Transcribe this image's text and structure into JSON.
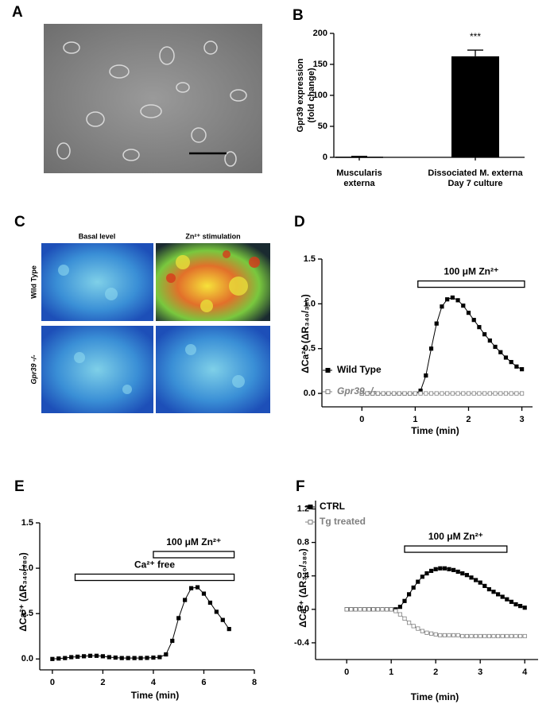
{
  "figure": {
    "panel_labels": [
      "A",
      "B",
      "C",
      "D",
      "E",
      "F"
    ],
    "panel_c": {
      "columns": [
        "Basal level",
        "Zn²⁺ stimulation"
      ],
      "rows": [
        "Wild Type",
        "Gpr39 -/-"
      ]
    }
  },
  "chart_data": [
    {
      "type": "bar",
      "categories": [
        [
          "Muscularis",
          "externa"
        ],
        [
          "Dissociated M. externa",
          "Day 7 culture"
        ]
      ],
      "values": [
        1,
        163
      ],
      "errors": [
        0.5,
        10
      ],
      "significance": [
        null,
        "***"
      ],
      "color": "#000000",
      "ylabel": [
        "Gpr39 expression",
        "(fold change)"
      ],
      "ylim": [
        0,
        200
      ],
      "yticks": [
        0,
        50,
        100,
        150,
        200
      ]
    },
    {
      "type": "line",
      "xlabel": "Time (min)",
      "ylabel": "ΔCa²⁺ (ΔR₃₄₀/₃₈₀)",
      "x": [
        0,
        0.1,
        0.2,
        0.3,
        0.4,
        0.5,
        0.6,
        0.7,
        0.8,
        0.9,
        1.0,
        1.1,
        1.2,
        1.3,
        1.4,
        1.5,
        1.6,
        1.7,
        1.8,
        1.9,
        2.0,
        2.1,
        2.2,
        2.3,
        2.4,
        2.5,
        2.6,
        2.7,
        2.8,
        2.9,
        3.0
      ],
      "series": [
        {
          "name": "Wild Type",
          "color": "#000000",
          "marker": "filled",
          "values": [
            0,
            0,
            0,
            0,
            0,
            0,
            0,
            0,
            0,
            0,
            0,
            0.03,
            0.2,
            0.5,
            0.78,
            0.97,
            1.05,
            1.07,
            1.04,
            0.98,
            0.9,
            0.82,
            0.74,
            0.66,
            0.59,
            0.52,
            0.46,
            0.4,
            0.35,
            0.3,
            0.27
          ]
        },
        {
          "name": "Gpr39 -/-",
          "color": "#808080",
          "marker": "open",
          "values": [
            0,
            0,
            0,
            0,
            0,
            0,
            0,
            0,
            0,
            0,
            0,
            0,
            0,
            0,
            0,
            0,
            0,
            0,
            0,
            0,
            0,
            0,
            0,
            0,
            0,
            0,
            0,
            0,
            0,
            0,
            0
          ]
        }
      ],
      "annotations": [
        {
          "text": "100 μM Zn²⁺",
          "x": [
            1.05,
            3.05
          ],
          "y": 1.22
        }
      ],
      "legend": "left",
      "xlim": [
        -0.75,
        3.2
      ],
      "xticks": [
        0,
        1,
        2,
        3
      ],
      "ylim": [
        -0.15,
        1.5
      ],
      "yticks": [
        {
          "value": 0,
          "label": "0.0"
        },
        0.5,
        {
          "value": 1,
          "label": "1.0"
        },
        1.5
      ]
    },
    {
      "type": "line",
      "xlabel": "Time (min)",
      "ylabel": "ΔCa²⁺ (ΔR₃₄₀/₃₈₀)",
      "x": [
        0,
        0.25,
        0.5,
        0.75,
        1,
        1.25,
        1.5,
        1.75,
        2,
        2.25,
        2.5,
        2.75,
        3,
        3.25,
        3.5,
        3.75,
        4,
        4.25,
        4.5,
        4.75,
        5,
        5.25,
        5.5,
        5.75,
        6,
        6.25,
        6.5,
        6.75,
        7
      ],
      "series": [
        {
          "color": "#000000",
          "marker": "filled",
          "values": [
            0,
            0.005,
            0.01,
            0.02,
            0.025,
            0.03,
            0.035,
            0.035,
            0.03,
            0.02,
            0.015,
            0.01,
            0.01,
            0.01,
            0.01,
            0.012,
            0.015,
            0.02,
            0.05,
            0.2,
            0.45,
            0.65,
            0.78,
            0.79,
            0.72,
            0.62,
            0.52,
            0.43,
            0.33
          ]
        }
      ],
      "annotations": [
        {
          "text": "100 μM Zn²⁺",
          "x": [
            4,
            7.2
          ],
          "y": 1.15
        },
        {
          "text": "Ca²⁺ free",
          "x": [
            0.9,
            7.2
          ],
          "y": 0.9
        }
      ],
      "xlim": [
        -0.5,
        8
      ],
      "xticks": [
        0,
        2,
        4,
        6,
        8
      ],
      "ylim": [
        -0.12,
        1.5
      ],
      "yticks": [
        {
          "value": 0,
          "label": "0.0"
        },
        0.5,
        {
          "value": 1,
          "label": "1.0"
        },
        1.5
      ]
    },
    {
      "type": "line",
      "xlabel": "Time (min)",
      "ylabel": "ΔCa²⁺ (ΔR₃₄₀/₃₈₀)",
      "x": [
        0,
        0.1,
        0.2,
        0.3,
        0.4,
        0.5,
        0.6,
        0.7,
        0.8,
        0.9,
        1.0,
        1.1,
        1.2,
        1.3,
        1.4,
        1.5,
        1.6,
        1.7,
        1.8,
        1.9,
        2.0,
        2.1,
        2.2,
        2.3,
        2.4,
        2.5,
        2.6,
        2.7,
        2.8,
        2.9,
        3.0,
        3.1,
        3.2,
        3.3,
        3.4,
        3.5,
        3.6,
        3.7,
        3.8,
        3.9,
        4.0
      ],
      "series": [
        {
          "name": "CTRL",
          "color": "#000000",
          "marker": "filled",
          "values": [
            0,
            0,
            0,
            0,
            0,
            0,
            0,
            0,
            0,
            0,
            0,
            0,
            0.03,
            0.1,
            0.18,
            0.26,
            0.33,
            0.39,
            0.43,
            0.46,
            0.48,
            0.49,
            0.49,
            0.48,
            0.47,
            0.45,
            0.43,
            0.41,
            0.38,
            0.35,
            0.32,
            0.28,
            0.24,
            0.21,
            0.18,
            0.15,
            0.12,
            0.09,
            0.06,
            0.04,
            0.02
          ]
        },
        {
          "name": "Tg treated",
          "color": "#808080",
          "marker": "open",
          "values": [
            0,
            0,
            0,
            0,
            0,
            0,
            0,
            0,
            0,
            0,
            0,
            -0.02,
            -0.06,
            -0.11,
            -0.16,
            -0.2,
            -0.23,
            -0.26,
            -0.28,
            -0.29,
            -0.3,
            -0.31,
            -0.31,
            -0.31,
            -0.31,
            -0.31,
            -0.32,
            -0.32,
            -0.32,
            -0.32,
            -0.32,
            -0.32,
            -0.32,
            -0.32,
            -0.32,
            -0.32,
            -0.32,
            -0.32,
            -0.32,
            -0.32,
            -0.32
          ]
        }
      ],
      "annotations": [
        {
          "text": "100 μM Zn²⁺",
          "x": [
            1.3,
            3.6
          ],
          "y": 0.72
        }
      ],
      "legend": "upper left",
      "xlim": [
        -0.7,
        4.3
      ],
      "xticks": [
        0,
        1,
        2,
        3,
        4
      ],
      "ylim": [
        -0.6,
        1.3
      ],
      "yticks": [
        -0.4,
        {
          "value": 0,
          "label": "0.0"
        },
        0.4,
        0.8,
        1.2
      ]
    }
  ]
}
